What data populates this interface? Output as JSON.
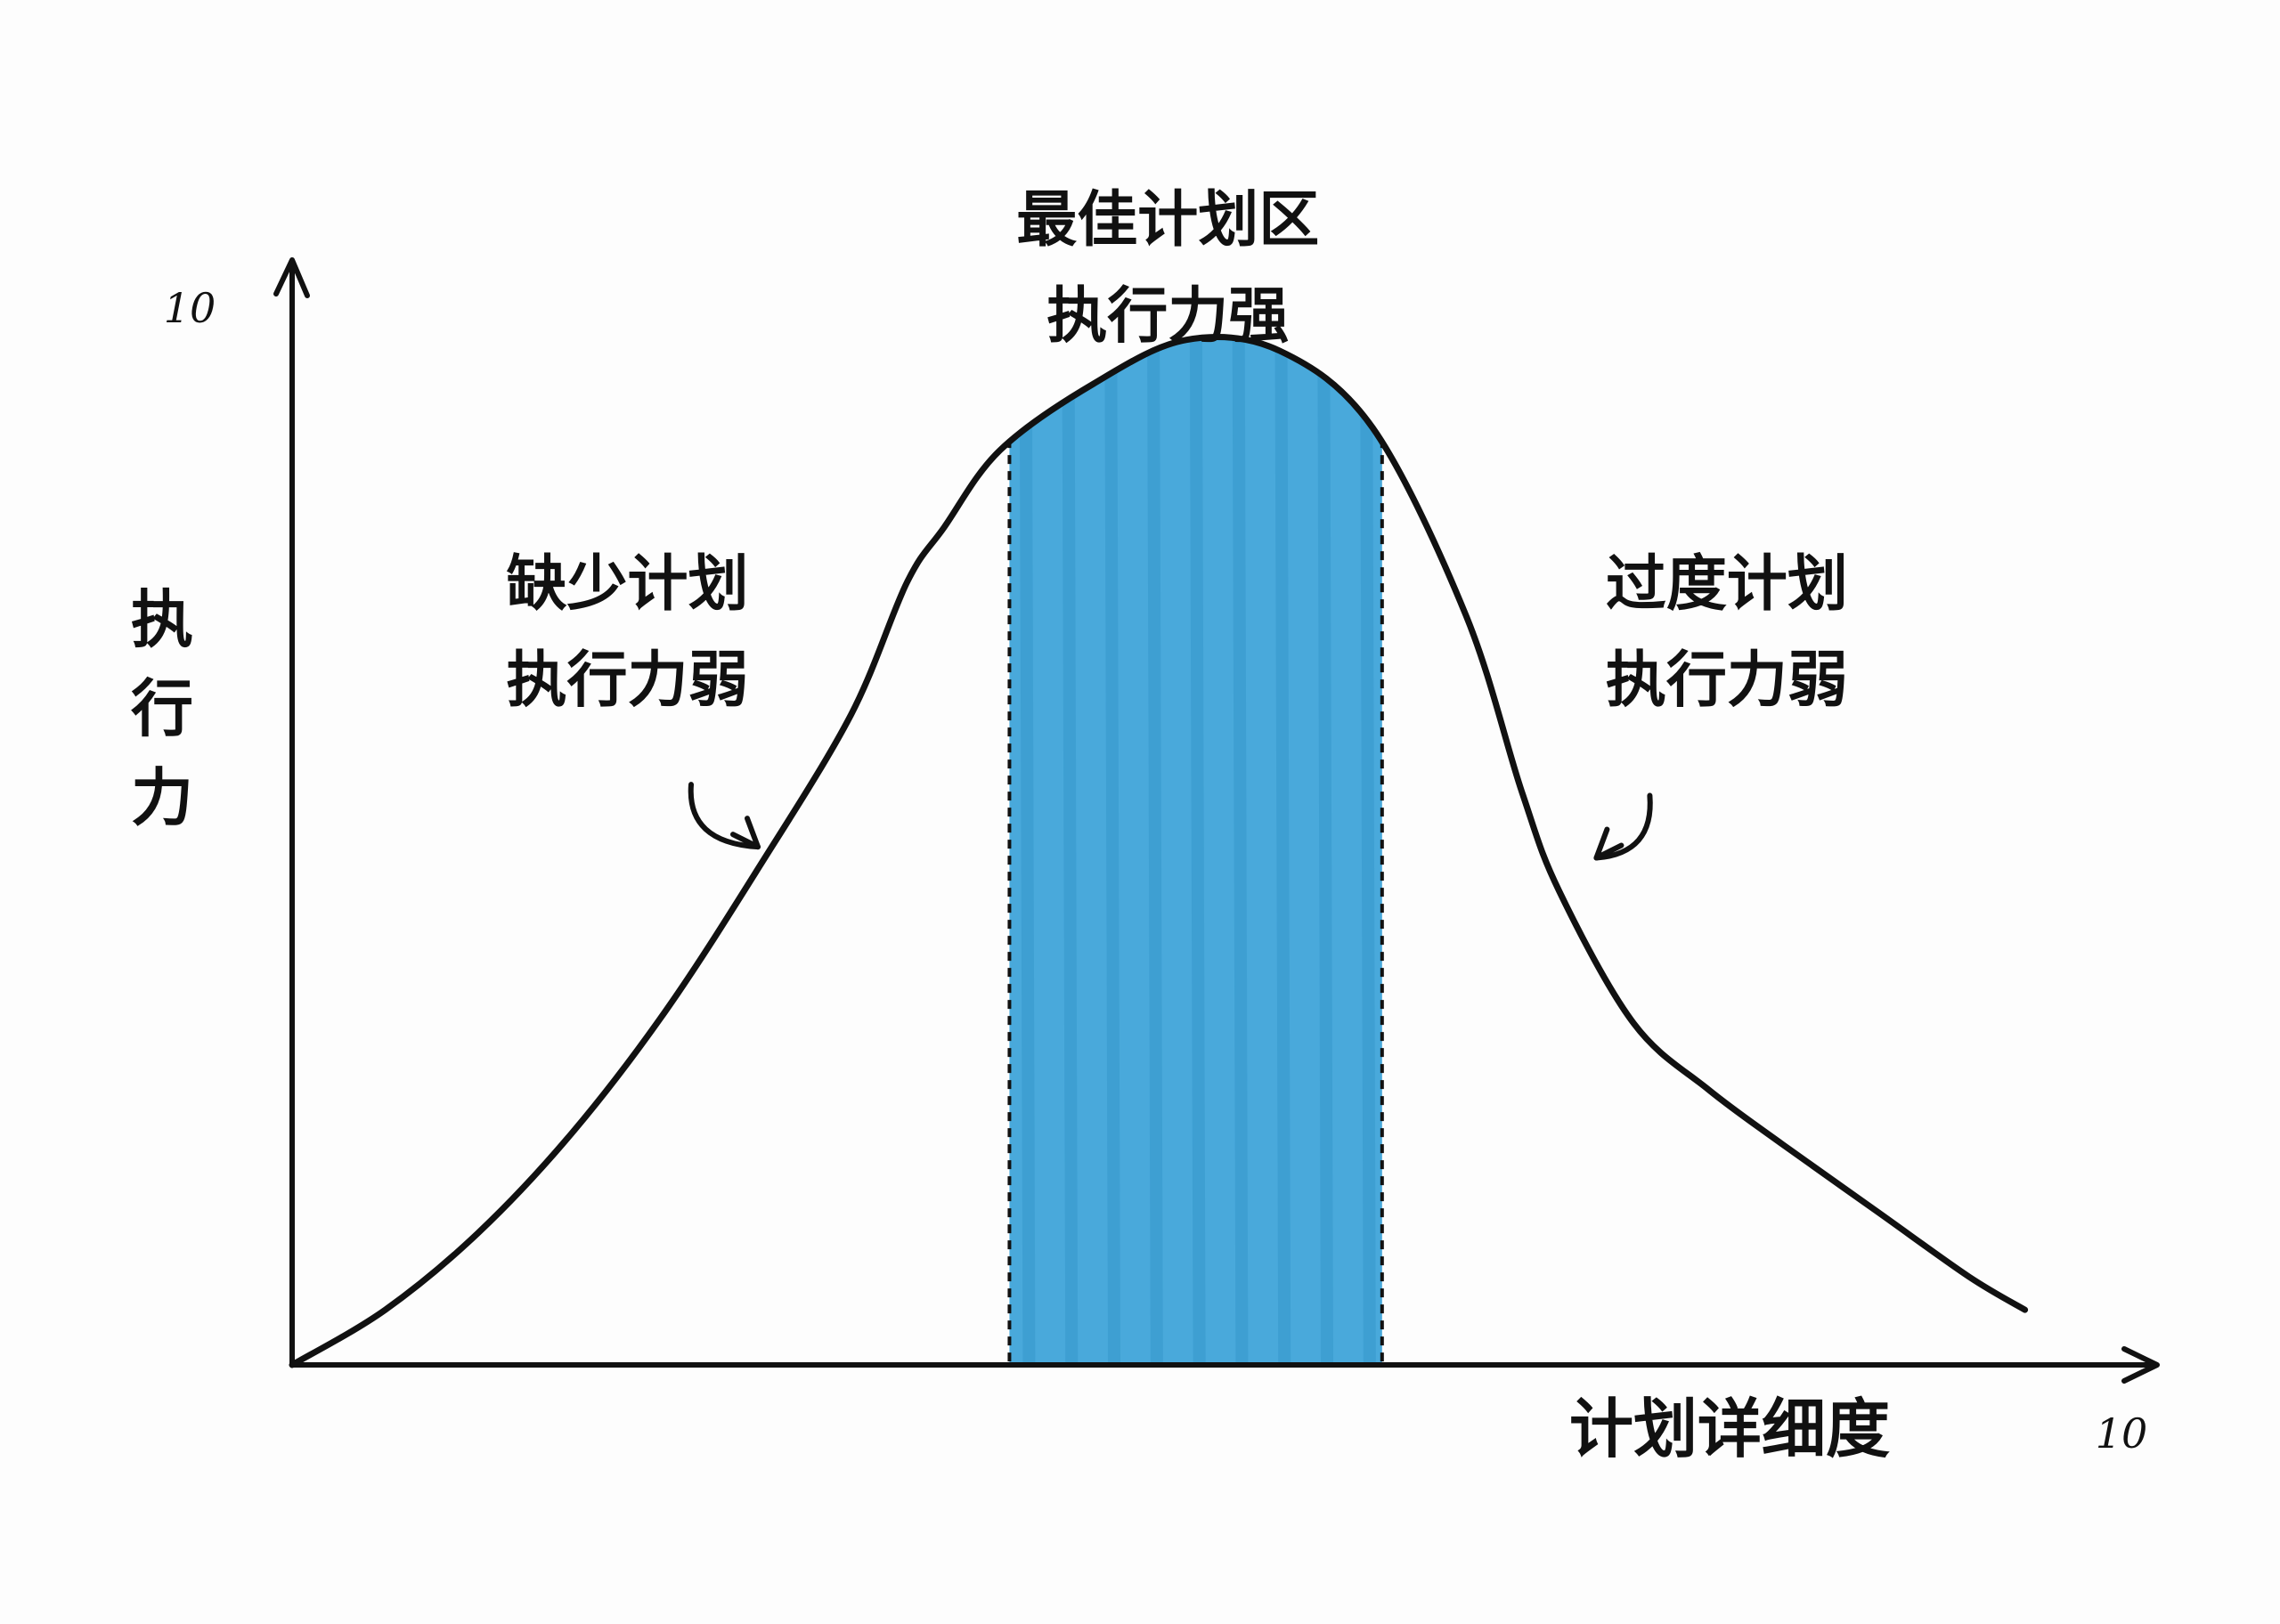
{
  "chart_data": {
    "type": "area",
    "title": "",
    "xlabel": "计划详细度",
    "ylabel": "执行力",
    "xlim": [
      0,
      10
    ],
    "ylim": [
      0,
      10
    ],
    "x_tick_labels": [
      "10"
    ],
    "y_tick_labels": [
      "10"
    ],
    "grid": false,
    "legend": "none",
    "curve_color": "#111111",
    "highlight_color": "#3aa2d8",
    "series": [
      {
        "x": [
          0,
          0.5,
          1,
          1.5,
          2,
          2.5,
          3,
          3.3,
          3.5,
          3.8,
          4.3,
          4.8,
          5.3,
          5.8,
          6.3,
          6.6,
          6.8,
          7.2,
          7.6,
          8,
          8.5,
          9,
          9.3
        ],
        "y": [
          0,
          0.5,
          1.2,
          2.1,
          3.2,
          4.5,
          5.9,
          7.1,
          7.6,
          8.3,
          8.9,
          9.3,
          9.2,
          8.5,
          6.8,
          5.2,
          4.3,
          3.1,
          2.5,
          2.0,
          1.4,
          0.8,
          0.5
        ]
      }
    ],
    "highlight_band": {
      "x_start": 3.85,
      "x_end": 5.85
    },
    "annotations": [
      {
        "lines": [
          "最佳计划区",
          "执行力强"
        ],
        "x": 4.7,
        "y": 10.2
      },
      {
        "lines": [
          "缺少计划",
          "执行力弱"
        ],
        "x": 1.8,
        "y": 6.9,
        "arrow_to": [
          2.5,
          4.7
        ]
      },
      {
        "lines": [
          "过度计划",
          "执行力弱"
        ],
        "x": 7.7,
        "y": 6.9,
        "arrow_to": [
          7.0,
          4.6
        ]
      }
    ]
  }
}
